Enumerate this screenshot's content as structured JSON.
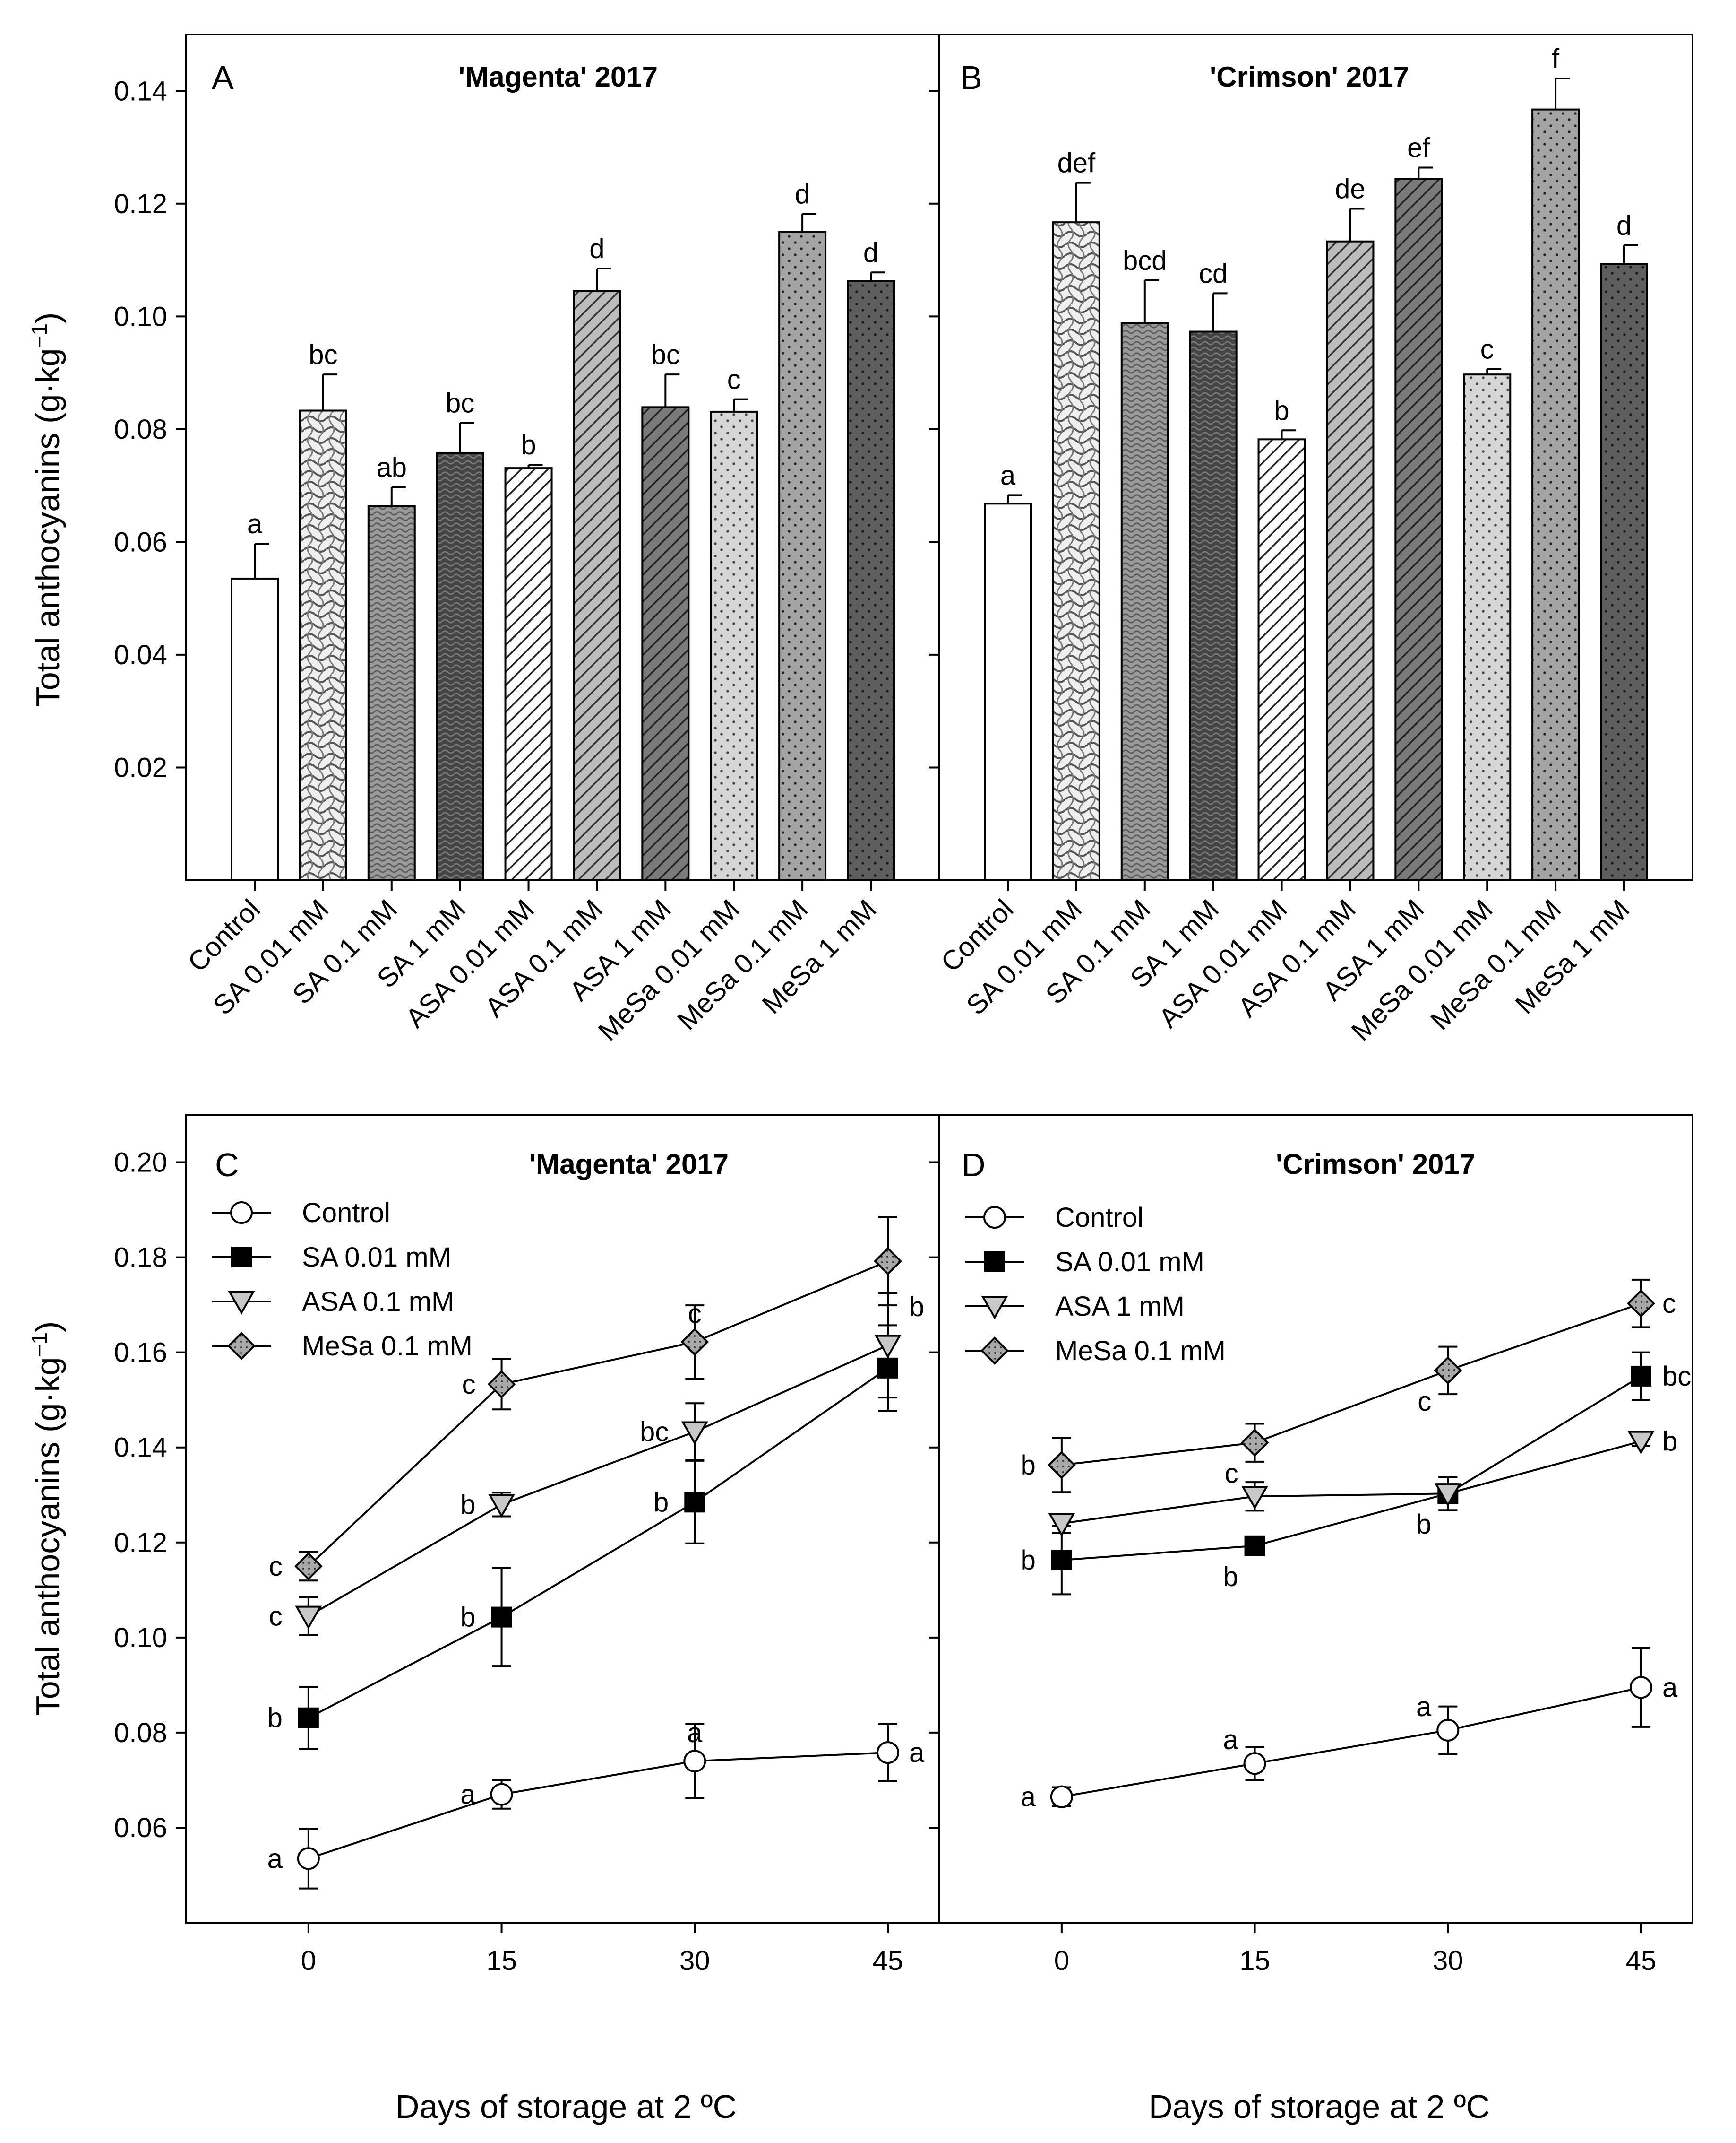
{
  "figure": {
    "ylabel": "Total anthocyanins (g·kg",
    "ylabel_exp": "−1",
    "ylabel_close": ")",
    "xlabel": "Days of storage at 2 ºC"
  },
  "chart_data": [
    {
      "type": "bar",
      "panel": "A",
      "title": "'Magenta' 2017",
      "ylim": [
        0.0,
        0.15
      ],
      "yticks": [
        0.02,
        0.04,
        0.06,
        0.08,
        0.1,
        0.12,
        0.14
      ],
      "ytick_labels": [
        "0.02",
        "0.04",
        "0.06",
        "0.08",
        "0.10",
        "0.12",
        "0.14"
      ],
      "categories": [
        "Control",
        "SA 0.01 mM",
        "SA 0.1 mM",
        "SA 1 mM",
        "ASA 0.01 mM",
        "ASA 0.1 mM",
        "ASA 1 mM",
        "MeSa 0.01 mM",
        "MeSa 0.1 mM",
        "MeSa 1 mM"
      ],
      "values": [
        0.0535,
        0.0833,
        0.0664,
        0.0758,
        0.0731,
        0.1045,
        0.0839,
        0.0831,
        0.115,
        0.1063
      ],
      "errors": [
        0.0062,
        0.0064,
        0.0033,
        0.0053,
        0.0006,
        0.004,
        0.0058,
        0.0022,
        0.0032,
        0.0015
      ],
      "letters": [
        "a",
        "bc",
        "ab",
        "bc",
        "b",
        "d",
        "bc",
        "c",
        "d",
        "d"
      ],
      "patterns": [
        "white",
        "wave",
        "grainmid",
        "grainsoft",
        "hatch",
        "hatchmid",
        "hatchdark",
        "dotlight",
        "dotgrey",
        "dotdark"
      ]
    },
    {
      "type": "bar",
      "panel": "B",
      "title": "'Crimson' 2017",
      "ylim": [
        0.0,
        0.15
      ],
      "yticks": [
        0.02,
        0.04,
        0.06,
        0.08,
        0.1,
        0.12,
        0.14
      ],
      "ytick_labels": [
        "0.02",
        "0.04",
        "0.06",
        "0.08",
        "0.10",
        "0.12",
        "0.14"
      ],
      "categories": [
        "Control",
        "SA 0.01 mM",
        "SA 0.1 mM",
        "SA 1 mM",
        "ASA 0.01 mM",
        "ASA 0.1 mM",
        "ASA 1 mM",
        "MeSa 0.01 mM",
        "MeSa 0.1 mM",
        "MeSa 1 mM"
      ],
      "values": [
        0.0668,
        0.1167,
        0.0988,
        0.0973,
        0.0782,
        0.1133,
        0.1244,
        0.0897,
        0.1367,
        0.1093
      ],
      "errors": [
        0.0015,
        0.007,
        0.0076,
        0.0068,
        0.0016,
        0.0058,
        0.002,
        0.001,
        0.0055,
        0.0033
      ],
      "letters": [
        "a",
        "def",
        "bcd",
        "cd",
        "b",
        "de",
        "ef",
        "c",
        "f",
        "d"
      ],
      "patterns": [
        "white",
        "wave",
        "grainmid",
        "grainsoft",
        "hatch",
        "hatchmid",
        "hatchdark",
        "dotlight",
        "dotgrey",
        "dotdark"
      ]
    },
    {
      "type": "line",
      "panel": "C",
      "title": "'Magenta' 2017",
      "x": [
        0,
        15,
        30,
        45
      ],
      "xticks": [
        0,
        15,
        30,
        45
      ],
      "xtick_labels": [
        "0",
        "15",
        "30",
        "45"
      ],
      "xlim": [
        -9.5,
        49
      ],
      "ylim": [
        0.04,
        0.21
      ],
      "yticks": [
        0.06,
        0.08,
        0.1,
        0.12,
        0.14,
        0.16,
        0.18,
        0.2
      ],
      "ytick_labels": [
        "0.06",
        "0.08",
        "0.10",
        "0.12",
        "0.14",
        "0.16",
        "0.18",
        "0.20"
      ],
      "series": [
        {
          "name": "Control",
          "marker": "circle",
          "values": [
            0.0535,
            0.067,
            0.074,
            0.0758
          ],
          "errors": [
            0.0063,
            0.003,
            0.0078,
            0.006
          ],
          "letters": [
            "a",
            "a",
            "a",
            "a"
          ],
          "letter_side": [
            "left",
            "left",
            "top",
            "right"
          ]
        },
        {
          "name": "SA 0.01 mM",
          "marker": "square",
          "values": [
            0.0831,
            0.1043,
            0.1285,
            0.1567
          ],
          "errors": [
            0.0065,
            0.0103,
            0.0087,
            0.009
          ],
          "letters": [
            "b",
            "b",
            "b",
            "b"
          ],
          "letter_side": [
            "left",
            "left",
            "left",
            "top-right"
          ]
        },
        {
          "name": "ASA 0.1 mM",
          "marker": "triangle-down",
          "values": [
            0.1045,
            0.128,
            0.1433,
            0.1615
          ],
          "errors": [
            0.004,
            0.0025,
            0.006,
            0.011
          ],
          "letters": [
            "c",
            "b",
            "bc",
            ""
          ],
          "letter_side": [
            "left",
            "left",
            "left",
            "none"
          ]
        },
        {
          "name": "MeSa 0.1 mM",
          "marker": "diamond",
          "values": [
            0.115,
            0.1533,
            0.1622,
            0.1792
          ],
          "errors": [
            0.003,
            0.0053,
            0.0077,
            0.0093
          ],
          "letters": [
            "c",
            "c",
            "c",
            ""
          ],
          "letter_side": [
            "left",
            "left",
            "top",
            "none"
          ]
        }
      ]
    },
    {
      "type": "line",
      "panel": "D",
      "title": "'Crimson' 2017",
      "x": [
        0,
        15,
        30,
        45
      ],
      "xticks": [
        0,
        15,
        30,
        45
      ],
      "xtick_labels": [
        "0",
        "15",
        "30",
        "45"
      ],
      "xlim": [
        -9.5,
        49
      ],
      "ylim": [
        0.04,
        0.21
      ],
      "yticks": [
        0.06,
        0.08,
        0.1,
        0.12,
        0.14,
        0.16,
        0.18,
        0.2
      ],
      "ytick_labels": [
        "",
        "",
        "",
        "",
        "",
        "",
        "",
        ""
      ],
      "series": [
        {
          "name": "Control",
          "marker": "circle",
          "values": [
            0.0665,
            0.0735,
            0.0805,
            0.0895
          ],
          "errors": [
            0.002,
            0.0035,
            0.005,
            0.0083
          ],
          "letters": [
            "a",
            "a",
            "a",
            "a"
          ],
          "letter_side": [
            "left",
            "top-left",
            "top-left",
            "right"
          ]
        },
        {
          "name": "SA 0.01 mM",
          "marker": "square",
          "values": [
            0.1163,
            0.1193,
            0.1303,
            0.155
          ],
          "errors": [
            0.0072,
            0.0015,
            0.0035,
            0.005
          ],
          "letters": [
            "b",
            "b",
            "b",
            "bc"
          ],
          "letter_side": [
            "left",
            "bottom-left",
            "bottom-left",
            "right"
          ]
        },
        {
          "name": "ASA 1 mM",
          "marker": "triangle-down",
          "values": [
            0.124,
            0.1297,
            0.1303,
            0.1413
          ],
          "errors": [
            0.002,
            0.003,
            0.0035,
            0.001
          ],
          "letters": [
            "",
            "",
            "",
            "b"
          ],
          "letter_side": [
            "none",
            "none",
            "none",
            "right"
          ]
        },
        {
          "name": "MeSa 0.1 mM",
          "marker": "diamond",
          "values": [
            0.1363,
            0.141,
            0.1562,
            0.1703
          ],
          "errors": [
            0.0057,
            0.004,
            0.005,
            0.005
          ],
          "letters": [
            "b",
            "c",
            "c",
            "c"
          ],
          "letter_side": [
            "left",
            "bottom-left",
            "bottom-left",
            "right"
          ]
        }
      ]
    }
  ]
}
